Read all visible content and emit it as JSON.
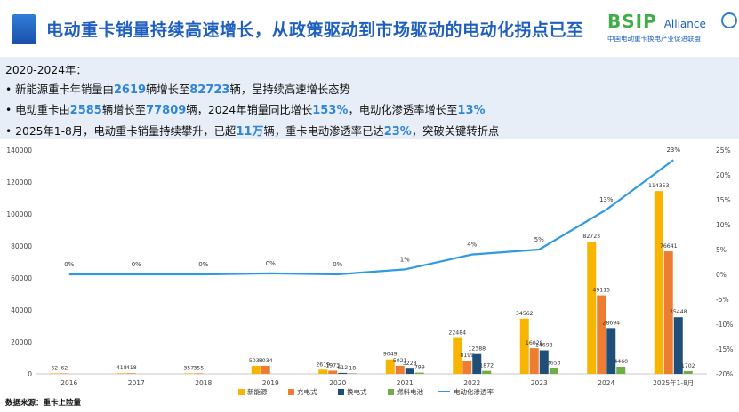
{
  "header": {
    "title": "电动重卡销量持续高速增长，从政策驱动到市场驱动的电动化拐点已至",
    "logo_text": "BSIP",
    "logo_alliance": "Alliance",
    "logo_subtitle": "中国电动重卡换电产业促进联盟"
  },
  "summary": {
    "heading": "2020-2024年：",
    "bullets": [
      {
        "parts": [
          {
            "t": "新能源重卡年销量由",
            "hl": false
          },
          {
            "t": "2619",
            "hl": true
          },
          {
            "t": "辆增长至",
            "hl": false
          },
          {
            "t": "82723",
            "hl": true
          },
          {
            "t": "辆，呈持续高速增长态势",
            "hl": false
          }
        ]
      },
      {
        "parts": [
          {
            "t": "电动重卡由",
            "hl": false
          },
          {
            "t": "2585",
            "hl": true
          },
          {
            "t": "辆增长至",
            "hl": false
          },
          {
            "t": "77809",
            "hl": true
          },
          {
            "t": "辆，2024年销量同比增长",
            "hl": false
          },
          {
            "t": "153%",
            "hl": true
          },
          {
            "t": "，电动化渗透率增长至",
            "hl": false
          },
          {
            "t": "13%",
            "hl": true
          }
        ]
      },
      {
        "parts": [
          {
            "t": "2025年1-8月，电动重卡销量持续攀升，已超",
            "hl": false
          },
          {
            "t": "11万",
            "hl": true
          },
          {
            "t": "辆，重卡电动渗透率已达",
            "hl": false
          },
          {
            "t": "23%",
            "hl": true
          },
          {
            "t": "，突破关键转折点",
            "hl": false
          }
        ]
      }
    ]
  },
  "chart_data": {
    "type": "bar",
    "categories": [
      "2016",
      "2017",
      "2018",
      "2019",
      "2020",
      "2021",
      "2022",
      "2023",
      "2024",
      "2025年1-8月"
    ],
    "series": [
      {
        "name": "新能源",
        "color": "#f7b500",
        "values": [
          62,
          418,
          357,
          5034,
          2619,
          9049,
          22484,
          34562,
          82723,
          114353
        ]
      },
      {
        "name": "充电式",
        "color": "#ed7d31",
        "values": [
          62,
          418,
          355,
          5034,
          1973,
          5021,
          8199,
          16028,
          49115,
          76641
        ]
      },
      {
        "name": "换电式",
        "color": "#1f4e79",
        "values": [
          null,
          null,
          null,
          null,
          612,
          3228,
          12388,
          14698,
          28694,
          35448
        ]
      },
      {
        "name": "燃料电池",
        "color": "#70ad47",
        "values": [
          null,
          null,
          null,
          null,
          18,
          799,
          1872,
          3653,
          4460,
          1702
        ]
      }
    ],
    "line": {
      "name": "电动化渗透率",
      "color": "#2e9ae6",
      "values": [
        0,
        0,
        0,
        0.2,
        0,
        1,
        4,
        5,
        13,
        23
      ],
      "labels": [
        "0%",
        "0%",
        "0%",
        "0%",
        "0%",
        "1%",
        "4%",
        "5%",
        "13%",
        "23%"
      ]
    },
    "y_left": {
      "min": 0,
      "max": 140000,
      "ticks": [
        "0",
        "20000",
        "40000",
        "60000",
        "80000",
        "100000",
        "120000",
        "140000"
      ]
    },
    "y_right": {
      "min": -20,
      "max": 25,
      "ticks": [
        "-20%",
        "-15%",
        "-10%",
        "-5%",
        "0%",
        "5%",
        "10%",
        "15%",
        "20%",
        "25%"
      ]
    },
    "legend_position": "bottom",
    "grid": false
  },
  "source": "数据来源：重卡上险量"
}
